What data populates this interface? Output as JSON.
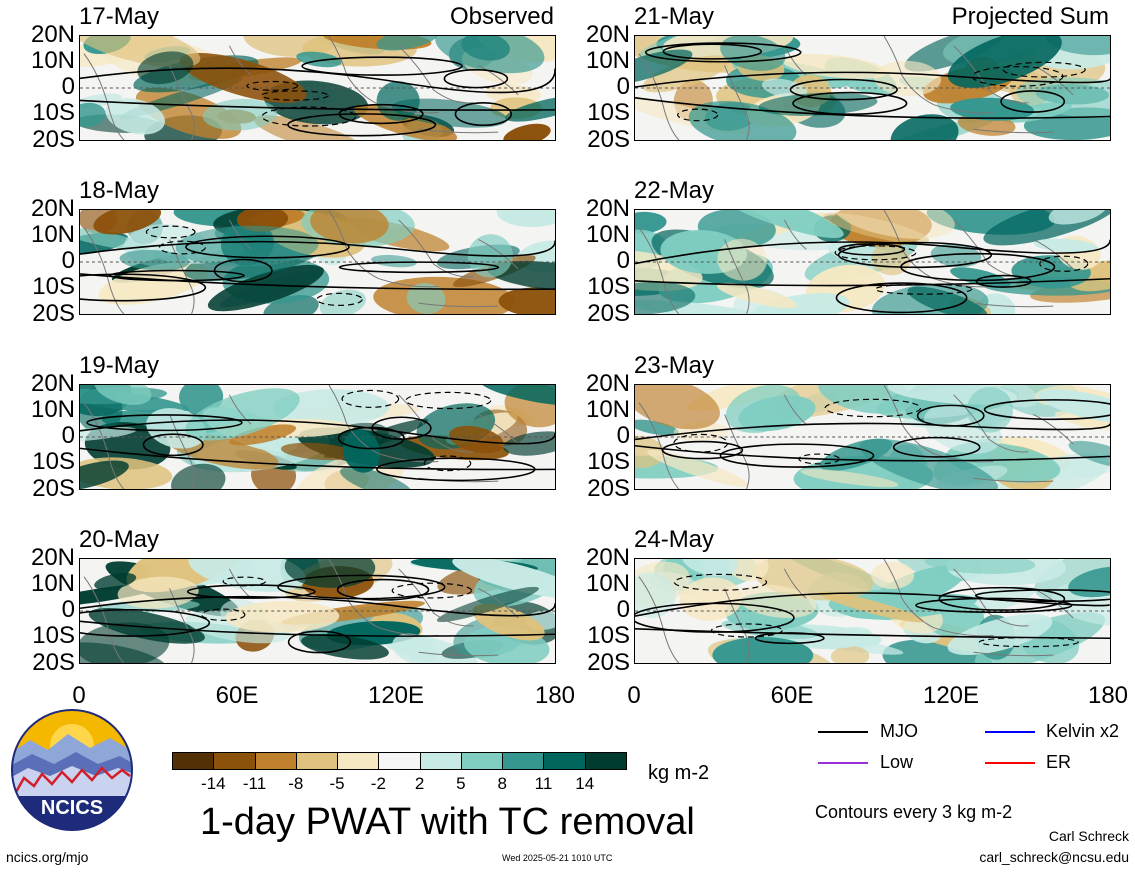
{
  "panels": [
    {
      "id": "p1",
      "date": "17-May",
      "label": "Observed",
      "col": 0,
      "row": 0,
      "seed": 3,
      "intensity": 1.0
    },
    {
      "id": "p2",
      "date": "18-May",
      "label": "",
      "col": 0,
      "row": 1,
      "seed": 7,
      "intensity": 1.0
    },
    {
      "id": "p3",
      "date": "19-May",
      "label": "",
      "col": 0,
      "row": 2,
      "seed": 11,
      "intensity": 1.0
    },
    {
      "id": "p4",
      "date": "20-May",
      "label": "",
      "col": 0,
      "row": 3,
      "seed": 19,
      "intensity": 1.0
    },
    {
      "id": "p5",
      "date": "21-May",
      "label": "Projected Sum",
      "col": 1,
      "row": 0,
      "seed": 23,
      "intensity": 0.75
    },
    {
      "id": "p6",
      "date": "22-May",
      "label": "",
      "col": 1,
      "row": 1,
      "seed": 29,
      "intensity": 0.65
    },
    {
      "id": "p7",
      "date": "23-May",
      "label": "",
      "col": 1,
      "row": 2,
      "seed": 31,
      "intensity": 0.55
    },
    {
      "id": "p8",
      "date": "24-May",
      "label": "",
      "col": 1,
      "row": 3,
      "seed": 37,
      "intensity": 0.5
    }
  ],
  "y_ticks": [
    "20N",
    "10N",
    "0",
    "10S",
    "20S"
  ],
  "x_ticks": [
    "0",
    "60E",
    "120E",
    "180"
  ],
  "colorbar": {
    "colors": [
      "#543005",
      "#8c510a",
      "#bf812d",
      "#dfc27d",
      "#f6e8c3",
      "#f5f5f5",
      "#c7eae5",
      "#80cdc1",
      "#35978f",
      "#01665e",
      "#003c30"
    ],
    "labels": [
      "-14",
      "-11",
      "-8",
      "-5",
      "-2",
      "2",
      "5",
      "8",
      "11",
      "14"
    ],
    "unit": "kg m-2"
  },
  "title": "1-day PWAT with TC removal",
  "legend": [
    {
      "label": "MJO",
      "color": "#000000"
    },
    {
      "label": "Kelvin x2",
      "color": "#0000ff"
    },
    {
      "label": "Low",
      "color": "#9b30d9"
    },
    {
      "label": "ER",
      "color": "#ff0000"
    }
  ],
  "contour_note": "Contours every 3 kg m-2",
  "author": "Carl Schreck",
  "email": "carl_schreck@ncsu.edu",
  "url": "ncics.org/mjo",
  "timestamp": "Wed 2025-05-21 1010 UTC",
  "logo_text": "NCICS"
}
